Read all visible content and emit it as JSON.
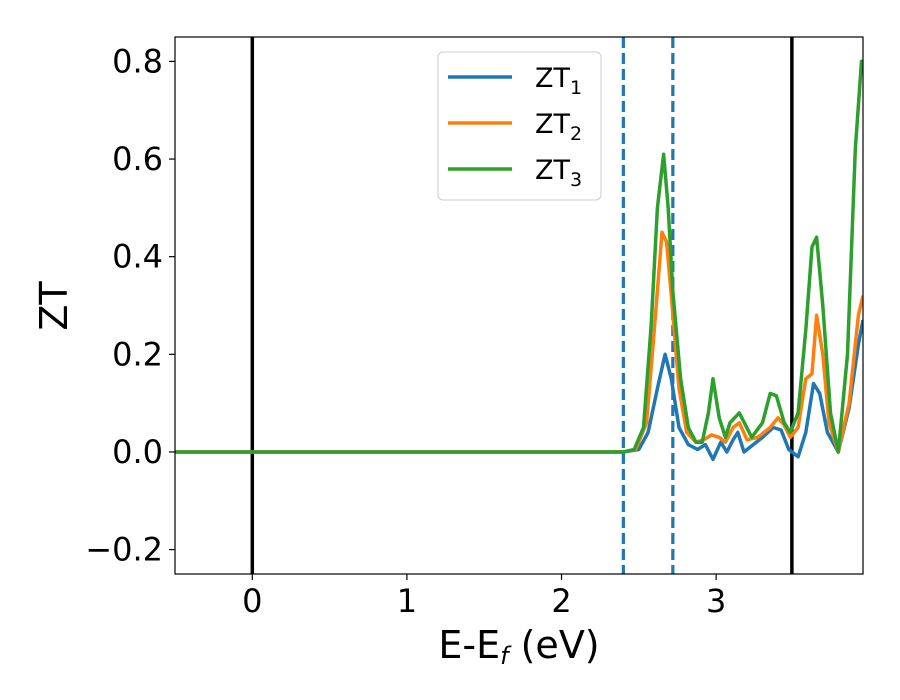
{
  "chart_data": {
    "type": "line",
    "title": "",
    "xlabel_main": "E-E",
    "xlabel_sub": "f",
    "xlabel_unit": " (eV)",
    "ylabel": "ZT",
    "xlim": [
      -0.5,
      3.95
    ],
    "ylim": [
      -0.25,
      0.85
    ],
    "xticks": [
      0,
      1,
      2,
      3
    ],
    "xtick_labels": [
      "0",
      "1",
      "2",
      "3"
    ],
    "yticks": [
      -0.2,
      0.0,
      0.2,
      0.4,
      0.6,
      0.8
    ],
    "ytick_labels": [
      "−0.2",
      "0.0",
      "0.2",
      "0.4",
      "0.6",
      "0.8"
    ],
    "grid": false,
    "legend_position": "upper-center",
    "vlines": [
      {
        "x": 0.0,
        "style": "solid",
        "color": "#000000"
      },
      {
        "x": 3.49,
        "style": "solid",
        "color": "#000000"
      },
      {
        "x": 2.4,
        "style": "dashed",
        "color": "#1f77b4"
      },
      {
        "x": 2.72,
        "style": "dashed",
        "color": "#1f77b4"
      }
    ],
    "series": [
      {
        "name": "ZT",
        "name_sub": "1",
        "color": "#1f77b4",
        "points": [
          [
            -0.5,
            0
          ],
          [
            2.4,
            0
          ],
          [
            2.5,
            0.005
          ],
          [
            2.56,
            0.04
          ],
          [
            2.62,
            0.13
          ],
          [
            2.67,
            0.2
          ],
          [
            2.71,
            0.15
          ],
          [
            2.76,
            0.05
          ],
          [
            2.82,
            0.015
          ],
          [
            2.88,
            0.005
          ],
          [
            2.93,
            0.015
          ],
          [
            2.98,
            -0.015
          ],
          [
            3.03,
            0.02
          ],
          [
            3.07,
            0.0
          ],
          [
            3.11,
            0.025
          ],
          [
            3.14,
            0.04
          ],
          [
            3.18,
            0.0
          ],
          [
            3.22,
            0.01
          ],
          [
            3.3,
            0.03
          ],
          [
            3.37,
            0.05
          ],
          [
            3.42,
            0.045
          ],
          [
            3.47,
            0.005
          ],
          [
            3.53,
            -0.01
          ],
          [
            3.58,
            0.04
          ],
          [
            3.63,
            0.14
          ],
          [
            3.67,
            0.12
          ],
          [
            3.72,
            0.04
          ],
          [
            3.79,
            0.0
          ],
          [
            3.86,
            0.09
          ],
          [
            3.92,
            0.22
          ],
          [
            3.95,
            0.27
          ]
        ]
      },
      {
        "name": "ZT",
        "name_sub": "2",
        "color": "#ff7f0e",
        "points": [
          [
            -0.5,
            0
          ],
          [
            2.4,
            0
          ],
          [
            2.48,
            0.005
          ],
          [
            2.55,
            0.06
          ],
          [
            2.6,
            0.25
          ],
          [
            2.65,
            0.45
          ],
          [
            2.68,
            0.43
          ],
          [
            2.71,
            0.32
          ],
          [
            2.76,
            0.13
          ],
          [
            2.81,
            0.04
          ],
          [
            2.87,
            0.02
          ],
          [
            2.92,
            0.025
          ],
          [
            2.97,
            0.035
          ],
          [
            3.02,
            0.03
          ],
          [
            3.06,
            0.02
          ],
          [
            3.11,
            0.05
          ],
          [
            3.15,
            0.06
          ],
          [
            3.2,
            0.025
          ],
          [
            3.27,
            0.03
          ],
          [
            3.35,
            0.05
          ],
          [
            3.4,
            0.07
          ],
          [
            3.44,
            0.055
          ],
          [
            3.48,
            0.03
          ],
          [
            3.53,
            0.05
          ],
          [
            3.58,
            0.15
          ],
          [
            3.62,
            0.16
          ],
          [
            3.65,
            0.28
          ],
          [
            3.69,
            0.2
          ],
          [
            3.73,
            0.06
          ],
          [
            3.79,
            0.0
          ],
          [
            3.86,
            0.1
          ],
          [
            3.92,
            0.28
          ],
          [
            3.95,
            0.32
          ]
        ]
      },
      {
        "name": "ZT",
        "name_sub": "3",
        "color": "#2ca02c",
        "points": [
          [
            -0.5,
            0
          ],
          [
            2.4,
            0
          ],
          [
            2.47,
            0.005
          ],
          [
            2.53,
            0.05
          ],
          [
            2.58,
            0.26
          ],
          [
            2.62,
            0.5
          ],
          [
            2.66,
            0.61
          ],
          [
            2.69,
            0.5
          ],
          [
            2.72,
            0.33
          ],
          [
            2.77,
            0.15
          ],
          [
            2.82,
            0.05
          ],
          [
            2.87,
            0.02
          ],
          [
            2.91,
            0.02
          ],
          [
            2.95,
            0.08
          ],
          [
            2.98,
            0.15
          ],
          [
            3.02,
            0.07
          ],
          [
            3.06,
            0.03
          ],
          [
            3.09,
            0.06
          ],
          [
            3.12,
            0.07
          ],
          [
            3.15,
            0.08
          ],
          [
            3.19,
            0.055
          ],
          [
            3.23,
            0.03
          ],
          [
            3.3,
            0.06
          ],
          [
            3.35,
            0.12
          ],
          [
            3.39,
            0.115
          ],
          [
            3.44,
            0.06
          ],
          [
            3.48,
            0.04
          ],
          [
            3.53,
            0.08
          ],
          [
            3.58,
            0.25
          ],
          [
            3.62,
            0.42
          ],
          [
            3.65,
            0.44
          ],
          [
            3.69,
            0.3
          ],
          [
            3.74,
            0.08
          ],
          [
            3.79,
            0.0
          ],
          [
            3.85,
            0.2
          ],
          [
            3.9,
            0.62
          ],
          [
            3.94,
            0.8
          ],
          [
            3.95,
            0.8
          ]
        ]
      }
    ]
  }
}
